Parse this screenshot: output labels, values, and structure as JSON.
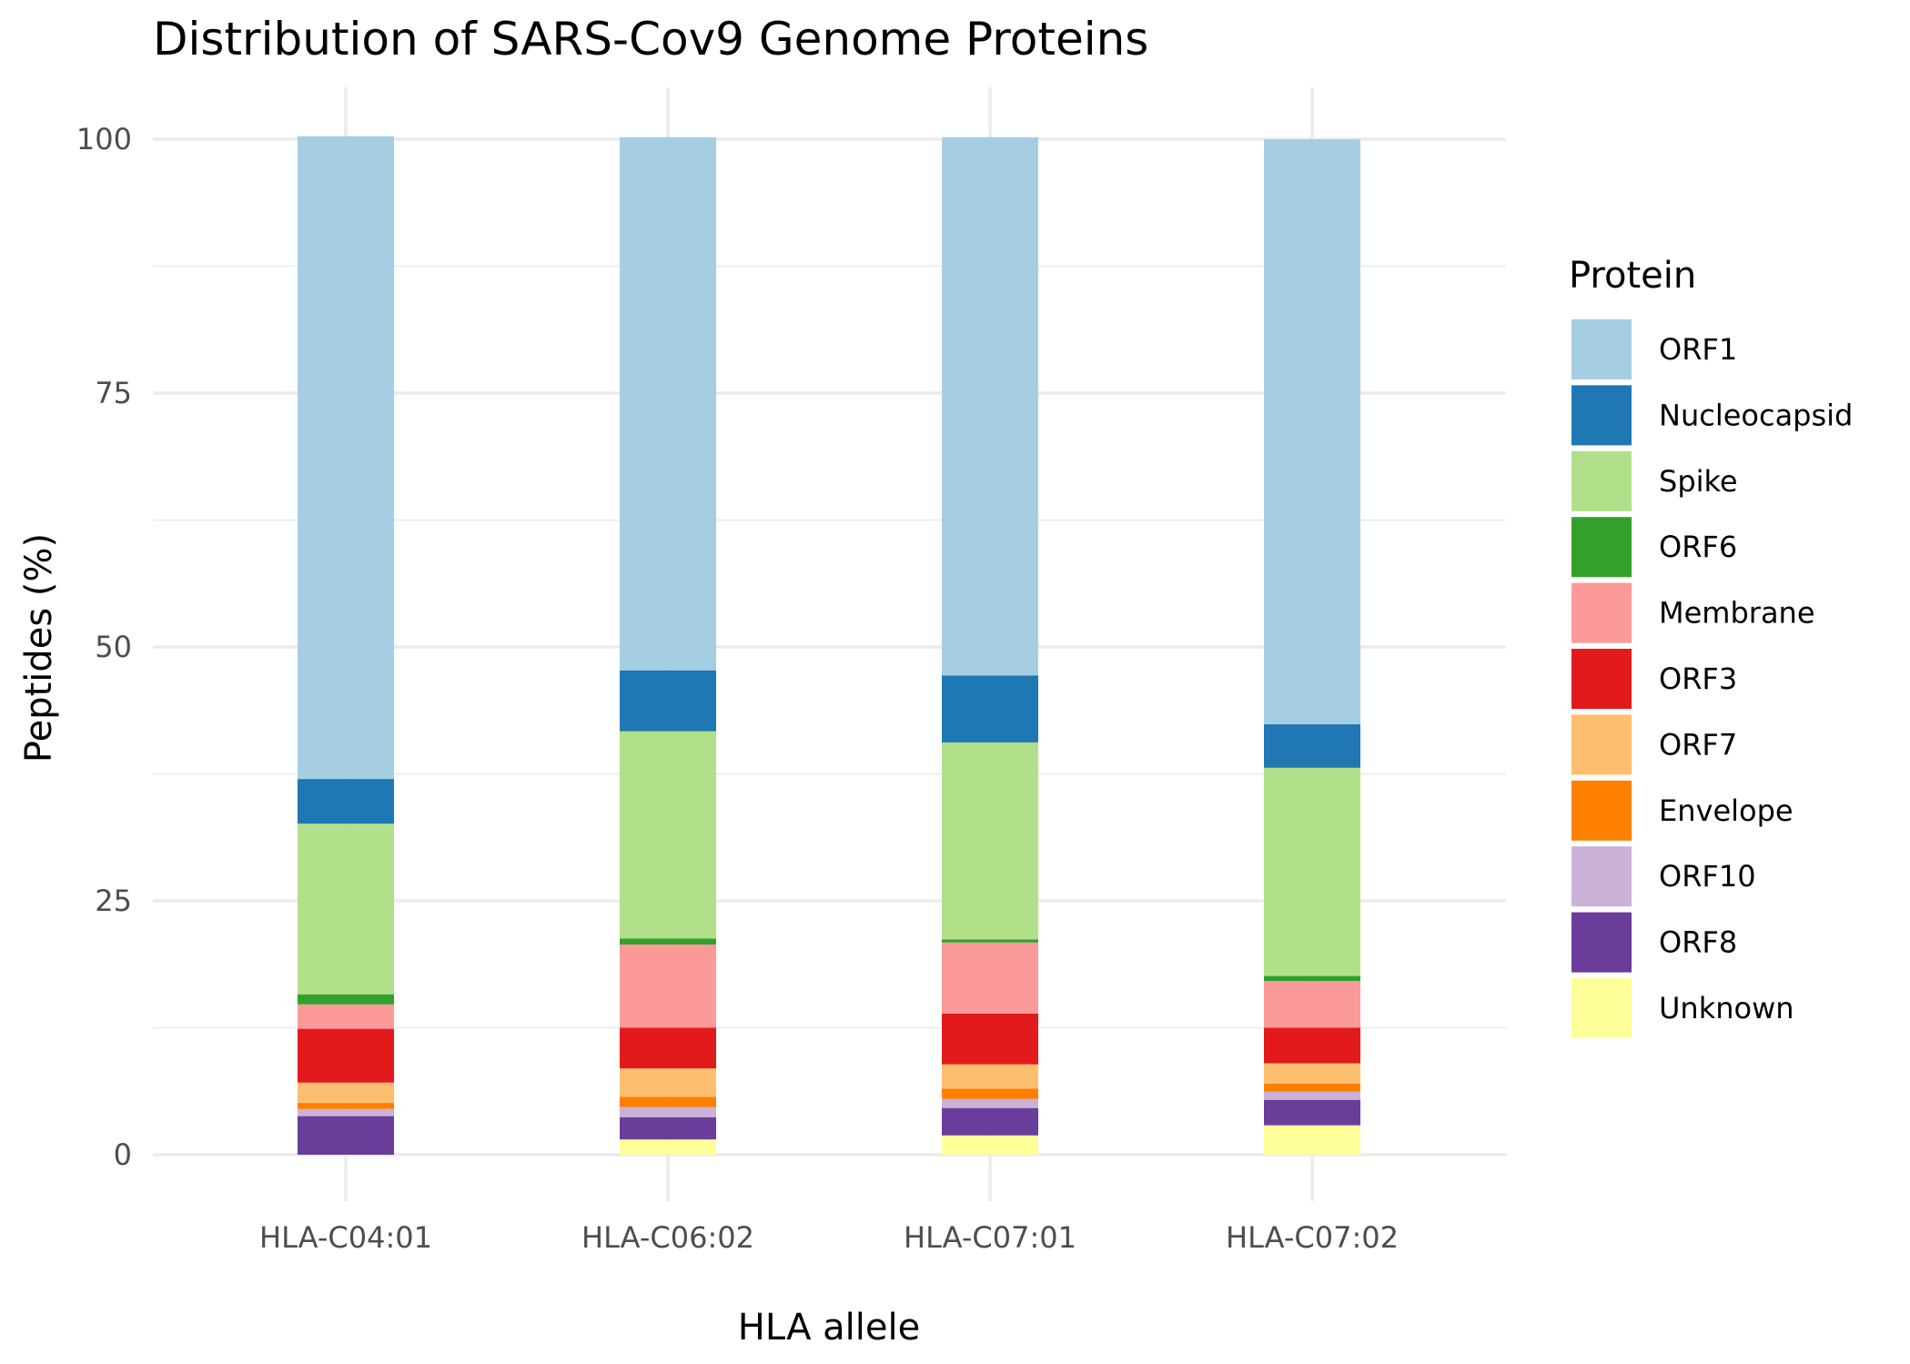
{
  "chart_data": {
    "type": "bar",
    "stacked": true,
    "title": "Distribution of SARS-Cov9 Genome Proteins",
    "xlabel": "HLA allele",
    "ylabel": "Peptides (%)",
    "ylim": [
      0,
      100
    ],
    "yticks": [
      0,
      25,
      50,
      75,
      100
    ],
    "grid": true,
    "legend": {
      "title": "Protein",
      "position": "right"
    },
    "categories": [
      "HLA-C04:01",
      "HLA-C06:02",
      "HLA-C07:01",
      "HLA-C07:02"
    ],
    "series": [
      {
        "name": "Unknown",
        "color": "#FFFF99",
        "values": [
          0.0,
          1.5,
          1.9,
          2.9
        ]
      },
      {
        "name": "ORF8",
        "color": "#6A3D9A",
        "values": [
          3.8,
          2.2,
          2.7,
          2.5
        ]
      },
      {
        "name": "ORF10",
        "color": "#CAB2D6",
        "values": [
          0.7,
          1.0,
          0.9,
          0.8
        ]
      },
      {
        "name": "Envelope",
        "color": "#FF7F00",
        "values": [
          0.6,
          1.0,
          1.0,
          0.8
        ]
      },
      {
        "name": "ORF7",
        "color": "#FDBF6F",
        "values": [
          2.0,
          2.8,
          2.4,
          2.0
        ]
      },
      {
        "name": "ORF3",
        "color": "#E31A1C",
        "values": [
          5.3,
          4.0,
          5.0,
          3.5
        ]
      },
      {
        "name": "Membrane",
        "color": "#FB9A99",
        "values": [
          2.4,
          8.2,
          7.0,
          4.6
        ]
      },
      {
        "name": "ORF6",
        "color": "#33A02C",
        "values": [
          1.0,
          0.6,
          0.3,
          0.5
        ]
      },
      {
        "name": "Spike",
        "color": "#B2DF8A",
        "values": [
          16.8,
          20.4,
          19.4,
          20.5
        ]
      },
      {
        "name": "Nucleocapsid",
        "color": "#1F78B4",
        "values": [
          4.4,
          6.0,
          6.6,
          4.3
        ]
      },
      {
        "name": "ORF1",
        "color": "#A6CEE3",
        "values": [
          63.3,
          52.5,
          53.0,
          57.6
        ]
      }
    ],
    "legend_order": [
      "ORF1",
      "Nucleocapsid",
      "Spike",
      "ORF6",
      "Membrane",
      "ORF3",
      "ORF7",
      "Envelope",
      "ORF10",
      "ORF8",
      "Unknown"
    ]
  }
}
